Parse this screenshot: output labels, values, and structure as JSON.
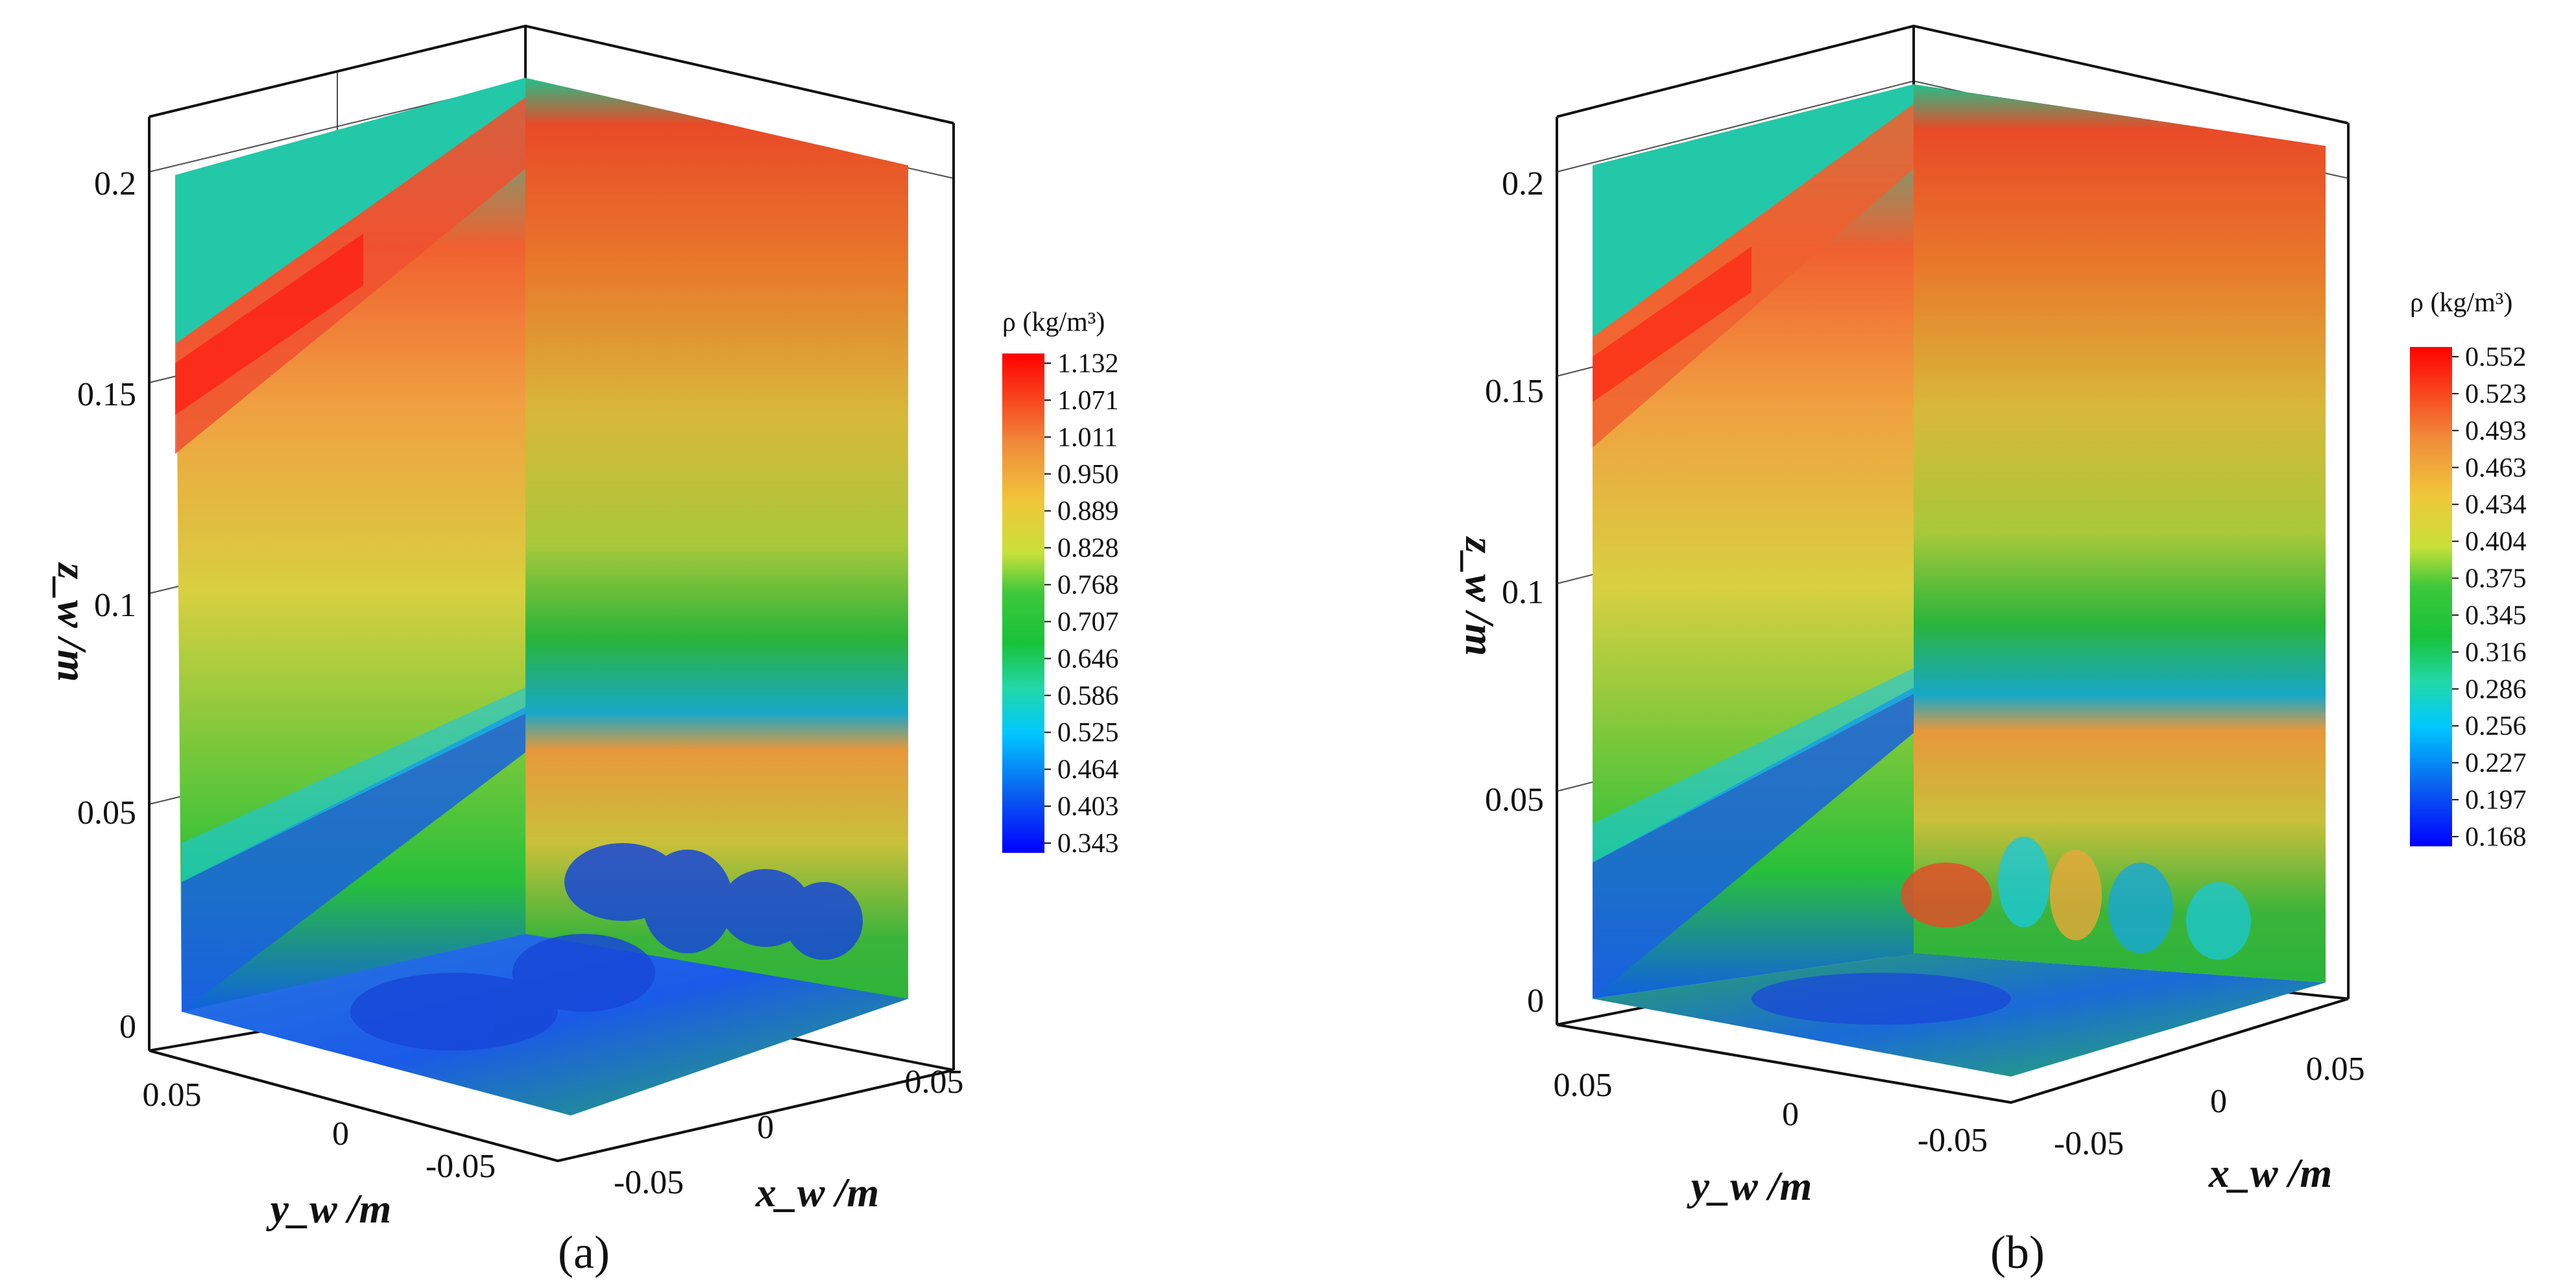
{
  "panels": [
    {
      "id": "a",
      "label": "(a)",
      "colorbar": {
        "title": "ρ (kg/m³)",
        "ticks": [
          "1.132",
          "1.071",
          "1.011",
          "0.950",
          "0.889",
          "0.828",
          "0.768",
          "0.707",
          "0.646",
          "0.586",
          "0.525",
          "0.464",
          "0.403",
          "0.343"
        ]
      },
      "z_axis": {
        "label": "z_w /m",
        "ticks": [
          "0.2",
          "0.15",
          "0.1",
          "0.05",
          "0"
        ]
      },
      "y_axis": {
        "label": "y_w /m",
        "ticks": [
          "0.05",
          "0",
          "-0.05"
        ]
      },
      "x_axis": {
        "label": "x_w /m",
        "ticks": [
          "-0.05",
          "0",
          "0.05"
        ]
      }
    },
    {
      "id": "b",
      "label": "(b)",
      "colorbar": {
        "title": "ρ (kg/m³)",
        "ticks": [
          "0.552",
          "0.523",
          "0.493",
          "0.463",
          "0.434",
          "0.404",
          "0.375",
          "0.345",
          "0.316",
          "0.286",
          "0.256",
          "0.227",
          "0.197",
          "0.168"
        ]
      },
      "z_axis": {
        "label": "z_w /m",
        "ticks": [
          "0.2",
          "0.15",
          "0.1",
          "0.05",
          "0"
        ]
      },
      "y_axis": {
        "label": "y_w /m",
        "ticks": [
          "0.05",
          "0",
          "-0.05"
        ]
      },
      "x_axis": {
        "label": "x_w /m",
        "ticks": [
          "-0.05",
          "0",
          "0.05"
        ]
      }
    }
  ],
  "colors": {
    "colormap": [
      "#0000ff",
      "#0a60f0",
      "#00c8ff",
      "#22d8a8",
      "#18c23a",
      "#3cc83a",
      "#a8d83a",
      "#e8e03a",
      "#f0a83a",
      "#f07a3a",
      "#f0503a",
      "#ff0000"
    ]
  }
}
